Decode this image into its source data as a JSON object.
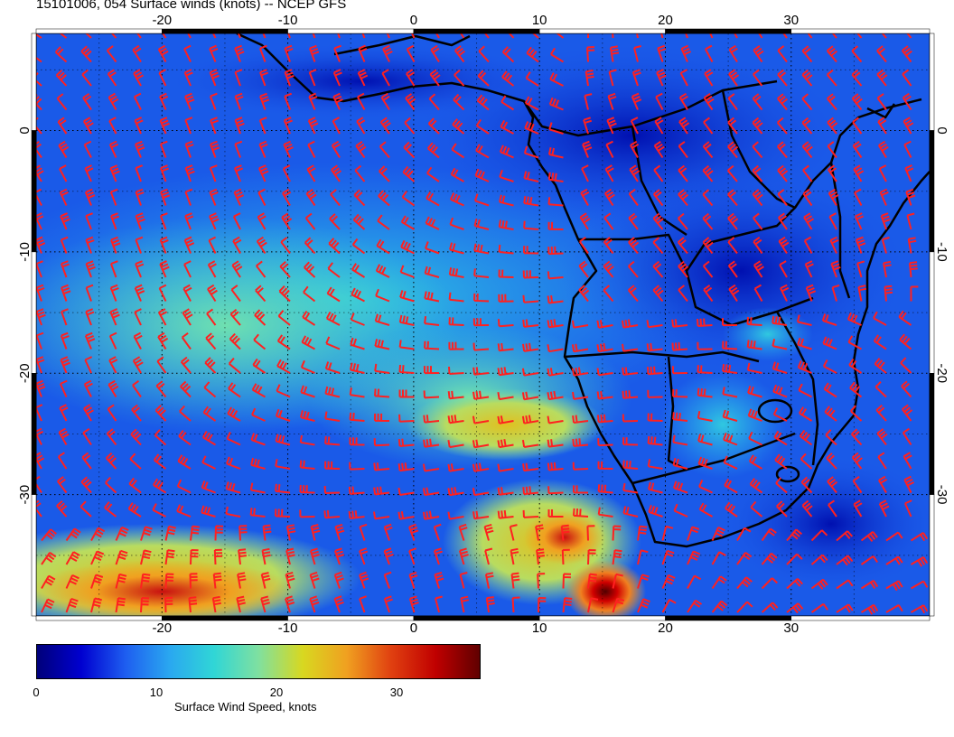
{
  "title": "15101006, 054 Surface winds (knots) -- NCEP GFS",
  "map": {
    "lon_labels_top": [
      "-20",
      "-10",
      "0",
      "10",
      "20",
      "30"
    ],
    "lon_labels_bottom": [
      "-20",
      "-10",
      "0",
      "10",
      "20",
      "30"
    ],
    "lat_labels_left": [
      "0",
      "-10",
      "-20",
      "-30"
    ],
    "lat_labels_right": [
      "0",
      "-10",
      "-20",
      "-30"
    ],
    "lon_values": [
      -20,
      -10,
      0,
      10,
      20,
      30
    ],
    "lat_values": [
      0,
      -10,
      -20,
      -30
    ],
    "lon_range": [
      -30,
      41
    ],
    "lat_range": [
      8,
      -40
    ],
    "barb_color": "#ff2020",
    "coast_color": "#000000",
    "grid": "dotted"
  },
  "colorbar": {
    "title": "Surface Wind Speed, knots",
    "tick_labels": [
      "0",
      "10",
      "20",
      "30"
    ],
    "tick_values": [
      0,
      10,
      20,
      30
    ],
    "range": [
      0,
      37
    ],
    "colors": [
      "#00007a",
      "#0000d0",
      "#1e5ef0",
      "#2aa8f0",
      "#30d6d6",
      "#7fe0a0",
      "#d8d820",
      "#f0a020",
      "#e04010",
      "#c00000",
      "#600000"
    ]
  }
}
